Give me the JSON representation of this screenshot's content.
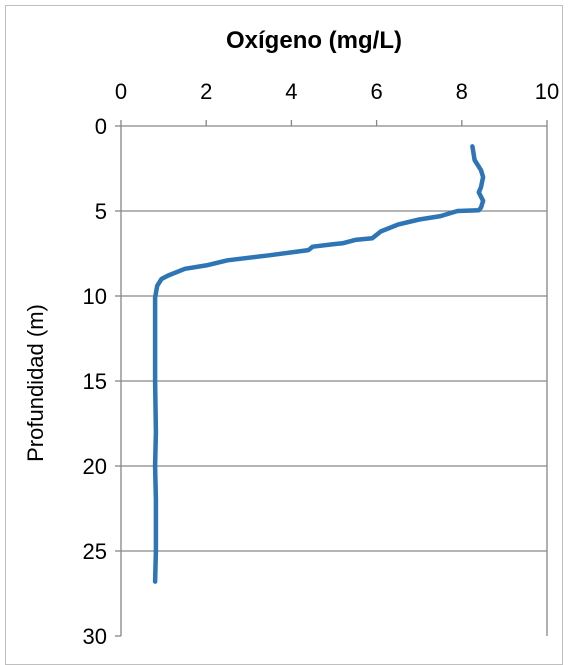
{
  "chart_data": {
    "type": "line",
    "title": "Oxígeno (mg/L)",
    "xlabel": "",
    "ylabel": "Profundidad (m)",
    "xlim": [
      0,
      10
    ],
    "ylim": [
      0,
      30
    ],
    "y_inverted": true,
    "x_axis_position": "top",
    "x_ticks": [
      "0",
      "2",
      "4",
      "6",
      "8",
      "10"
    ],
    "y_ticks": [
      "0",
      "5",
      "10",
      "15",
      "20",
      "25",
      "30"
    ],
    "grid": "horizontal",
    "legend": "none",
    "line_color": "#2e75b6",
    "series": [
      {
        "x": [
          8.25,
          8.3,
          8.45,
          8.5,
          8.45,
          8.4,
          8.5,
          8.45,
          8.4,
          7.9,
          7.5,
          7.0,
          6.5,
          6.1,
          5.9,
          5.5,
          5.2,
          5.0,
          4.5,
          4.4,
          3.5,
          2.5,
          2.0,
          1.5,
          1.1,
          0.95,
          0.85,
          0.8,
          0.8,
          0.8,
          0.82,
          0.8,
          0.82,
          0.82,
          0.8
        ],
        "y": [
          1.2,
          2.0,
          2.6,
          3.0,
          3.6,
          3.9,
          4.4,
          4.8,
          4.95,
          5.0,
          5.3,
          5.5,
          5.8,
          6.2,
          6.6,
          6.7,
          6.9,
          6.95,
          7.1,
          7.3,
          7.6,
          7.9,
          8.2,
          8.4,
          8.8,
          9.0,
          9.4,
          10.1,
          12.0,
          15.0,
          18.0,
          20.0,
          22.0,
          25.0,
          26.8
        ]
      }
    ]
  }
}
